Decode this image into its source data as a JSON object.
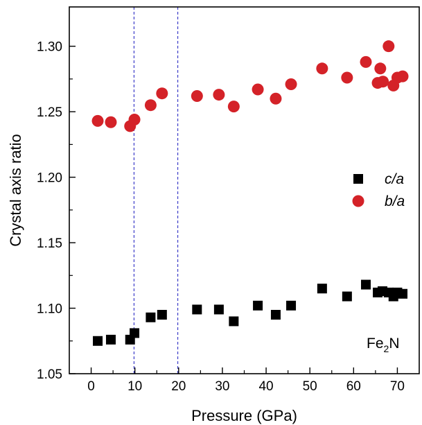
{
  "chart_data": {
    "type": "scatter",
    "xlabel": "Pressure (GPa)",
    "ylabel": "Crystal axis ratio",
    "xlim": [
      -5,
      75
    ],
    "ylim": [
      1.05,
      1.33
    ],
    "x_ticks": [
      "0",
      "10",
      "20",
      "30",
      "40",
      "50",
      "60",
      "70"
    ],
    "y_ticks": [
      "1.05",
      "1.10",
      "1.15",
      "1.20",
      "1.25",
      "1.30"
    ],
    "vlines": [
      9.8,
      19.8
    ],
    "legend_position": "middle-right",
    "annotation": {
      "base": "Fe",
      "sub": "2",
      "tail": "N"
    },
    "series": [
      {
        "name": "c/a",
        "marker": "square",
        "color": "#000000",
        "x": [
          1.5,
          4.5,
          8.9,
          9.9,
          13.6,
          16.2,
          24.2,
          29.2,
          32.6,
          38.1,
          42.2,
          45.7,
          52.8,
          58.5,
          62.8,
          65.5,
          66.6,
          68.0,
          69.1,
          70.0,
          71.2
        ],
        "y": [
          1.075,
          1.076,
          1.076,
          1.081,
          1.093,
          1.095,
          1.099,
          1.099,
          1.09,
          1.102,
          1.095,
          1.102,
          1.115,
          1.109,
          1.118,
          1.112,
          1.113,
          1.112,
          1.109,
          1.112,
          1.111
        ]
      },
      {
        "name": "b/a",
        "marker": "circle",
        "color": "#d42228",
        "x": [
          1.5,
          4.5,
          8.9,
          9.9,
          13.6,
          16.2,
          24.2,
          29.2,
          32.6,
          38.1,
          42.2,
          45.7,
          52.8,
          58.5,
          62.8,
          65.5,
          66.1,
          66.7,
          68.0,
          69.1,
          70.0,
          71.2
        ],
        "y": [
          1.243,
          1.242,
          1.239,
          1.244,
          1.255,
          1.264,
          1.262,
          1.263,
          1.254,
          1.267,
          1.26,
          1.271,
          1.283,
          1.276,
          1.288,
          1.272,
          1.283,
          1.273,
          1.3,
          1.27,
          1.276,
          1.277
        ]
      }
    ]
  }
}
